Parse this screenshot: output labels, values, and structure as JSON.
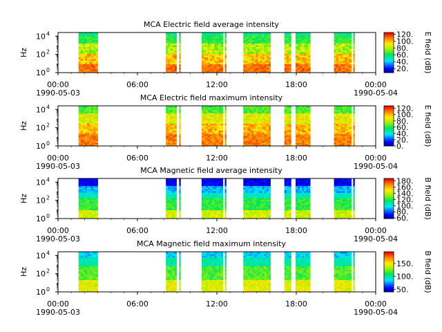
{
  "chart_data": [
    {
      "type": "heatmap",
      "title": "MCA  Electric field average intensity",
      "ylabel": "Hz",
      "y_ticks": [
        "10",
        "10",
        "10"
      ],
      "y_tick_exps": [
        "0",
        "2",
        "4"
      ],
      "x_ticks": [
        "00:00",
        "06:00",
        "12:00",
        "18:00",
        "00:00"
      ],
      "x_ticks_hours": [
        0,
        6,
        12,
        18,
        24
      ],
      "x_dates": [
        "1990-05-03",
        "",
        "",
        "",
        "1990-05-04"
      ],
      "xlim_hours": [
        0,
        24
      ],
      "ylim_log10_hz": [
        0,
        4.4
      ],
      "colorbar": {
        "label": "E field (dB)",
        "ticks": [
          "20.",
          "40.",
          "60.",
          "80.",
          "100.",
          "120."
        ],
        "tick_values": [
          20,
          40,
          60,
          80,
          100,
          120
        ],
        "range": [
          8,
          125
        ]
      },
      "data_intervals_hours": [
        [
          1.55,
          3.0
        ],
        [
          8.15,
          8.95
        ],
        [
          9.15,
          9.25
        ],
        [
          10.85,
          12.45
        ],
        [
          12.6,
          12.7
        ],
        [
          14.0,
          16.05
        ],
        [
          17.1,
          17.6
        ],
        [
          17.95,
          19.05
        ],
        [
          20.85,
          22.15
        ],
        [
          22.3,
          22.4
        ]
      ],
      "spectral_profile": "electric-average"
    },
    {
      "type": "heatmap",
      "title": "MCA  Electric field maximum intensity",
      "ylabel": "Hz",
      "y_ticks": [
        "10",
        "10",
        "10"
      ],
      "y_tick_exps": [
        "0",
        "2",
        "4"
      ],
      "x_ticks": [
        "00:00",
        "06:00",
        "12:00",
        "18:00",
        "00:00"
      ],
      "x_ticks_hours": [
        0,
        6,
        12,
        18,
        24
      ],
      "x_dates": [
        "1990-05-03",
        "",
        "",
        "",
        "1990-05-04"
      ],
      "xlim_hours": [
        0,
        24
      ],
      "ylim_log10_hz": [
        0,
        4.4
      ],
      "colorbar": {
        "label": "E field (dB)",
        "ticks": [
          "0.",
          "20.",
          "40.",
          "60.",
          "80.",
          "100.",
          "120."
        ],
        "tick_values": [
          0,
          20,
          40,
          60,
          80,
          100,
          120
        ],
        "range": [
          0,
          128
        ]
      },
      "data_intervals_hours": [
        [
          1.55,
          3.0
        ],
        [
          8.15,
          8.95
        ],
        [
          9.15,
          9.25
        ],
        [
          10.85,
          12.45
        ],
        [
          12.6,
          12.7
        ],
        [
          14.0,
          16.05
        ],
        [
          17.1,
          17.6
        ],
        [
          17.95,
          19.05
        ],
        [
          20.85,
          22.15
        ],
        [
          22.3,
          22.4
        ]
      ],
      "spectral_profile": "electric-maximum"
    },
    {
      "type": "heatmap",
      "title": "MCA  Magnetic field average intensity",
      "ylabel": "Hz",
      "y_ticks": [
        "10",
        "10",
        "10"
      ],
      "y_tick_exps": [
        "0",
        "2",
        "4"
      ],
      "x_ticks": [
        "00:00",
        "06:00",
        "12:00",
        "18:00",
        "00:00"
      ],
      "x_ticks_hours": [
        0,
        6,
        12,
        18,
        24
      ],
      "x_dates": [
        "1990-05-03",
        "",
        "",
        "",
        "1990-05-04"
      ],
      "xlim_hours": [
        0,
        24
      ],
      "ylim_log10_hz": [
        0,
        4.4
      ],
      "colorbar": {
        "label": "B field (dB)",
        "ticks": [
          "60.",
          "80.",
          "100.",
          "120.",
          "140.",
          "160.",
          "180."
        ],
        "tick_values": [
          60,
          80,
          100,
          120,
          140,
          160,
          180
        ],
        "range": [
          58,
          188
        ]
      },
      "data_intervals_hours": [
        [
          1.55,
          3.0
        ],
        [
          8.15,
          8.95
        ],
        [
          9.15,
          9.25
        ],
        [
          10.85,
          12.45
        ],
        [
          12.6,
          12.7
        ],
        [
          14.0,
          16.05
        ],
        [
          17.1,
          17.6
        ],
        [
          17.95,
          19.05
        ],
        [
          20.85,
          22.15
        ],
        [
          22.3,
          22.4
        ]
      ],
      "spectral_profile": "magnetic-average"
    },
    {
      "type": "heatmap",
      "title": "MCA  Magnetic field maximum intensity",
      "ylabel": "Hz",
      "y_ticks": [
        "10",
        "10",
        "10"
      ],
      "y_tick_exps": [
        "0",
        "2",
        "4"
      ],
      "x_ticks": [
        "00:00",
        "06:00",
        "12:00",
        "18:00",
        "00:00"
      ],
      "x_ticks_hours": [
        0,
        6,
        12,
        18,
        24
      ],
      "x_dates": [
        "1990-05-03",
        "",
        "",
        "",
        "1990-05-04"
      ],
      "xlim_hours": [
        0,
        24
      ],
      "ylim_log10_hz": [
        0,
        4.4
      ],
      "colorbar": {
        "label": "B field (dB)",
        "ticks": [
          "50.",
          "100.",
          "150."
        ],
        "tick_values": [
          50,
          100,
          150
        ],
        "range": [
          40,
          195
        ]
      },
      "data_intervals_hours": [
        [
          1.55,
          3.0
        ],
        [
          8.15,
          8.95
        ],
        [
          9.15,
          9.25
        ],
        [
          10.85,
          12.45
        ],
        [
          12.6,
          12.7
        ],
        [
          14.0,
          16.05
        ],
        [
          17.1,
          17.6
        ],
        [
          17.95,
          19.05
        ],
        [
          20.85,
          22.15
        ],
        [
          22.3,
          22.4
        ]
      ],
      "spectral_profile": "magnetic-maximum"
    }
  ]
}
